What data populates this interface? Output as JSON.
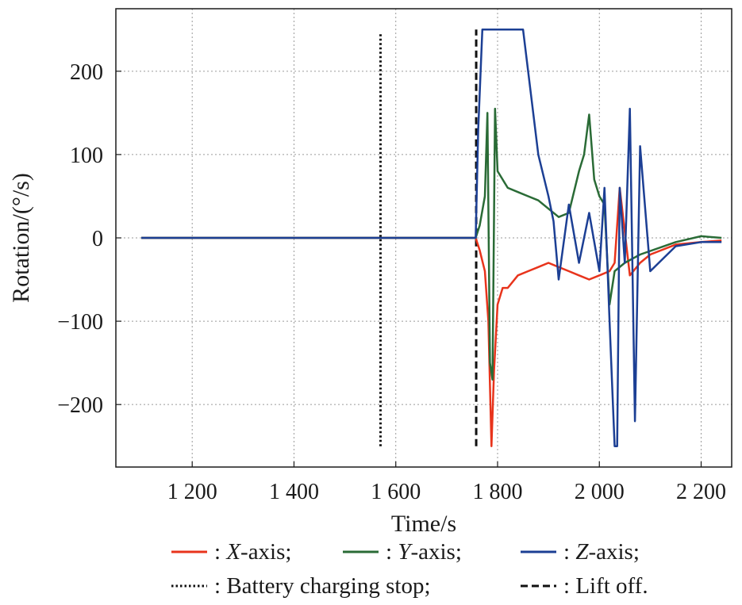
{
  "chart_data": {
    "type": "line",
    "xlabel": "Time/s",
    "ylabel": "Rotation/(°/s)",
    "xlim": [
      1050,
      2260
    ],
    "ylim": [
      -275,
      275
    ],
    "xticks": [
      1200,
      1400,
      1600,
      1800,
      2000,
      2200
    ],
    "xtick_labels": [
      "1 200",
      "1 400",
      "1 600",
      "1 800",
      "2 000",
      "2 200"
    ],
    "yticks": [
      200,
      100,
      0,
      -100,
      -200
    ],
    "ytick_labels": [
      "200",
      "100",
      "0",
      "−100",
      "−200"
    ],
    "grid": true,
    "legend_position": "bottom",
    "series": [
      {
        "name": "X-axis",
        "label_prefix": ": ",
        "label_suffix": ";",
        "color": "#e8341c",
        "x": [
          1100,
          1600,
          1757,
          1765,
          1775,
          1782,
          1788,
          1793,
          1800,
          1810,
          1820,
          1840,
          1860,
          1880,
          1900,
          1920,
          1940,
          1960,
          1980,
          2000,
          2020,
          2030,
          2040,
          2060,
          2080,
          2100,
          2150,
          2200,
          2240
        ],
        "y": [
          0,
          0,
          0,
          -15,
          -40,
          -100,
          -250,
          -160,
          -80,
          -60,
          -60,
          -45,
          -40,
          -35,
          -30,
          -35,
          -40,
          -45,
          -50,
          -45,
          -40,
          -30,
          60,
          -45,
          -30,
          -20,
          -8,
          -5,
          -3
        ]
      },
      {
        "name": "Y-axis",
        "label_prefix": ": ",
        "label_suffix": ";",
        "color": "#2a6b36",
        "x": [
          1100,
          1600,
          1757,
          1765,
          1775,
          1780,
          1785,
          1790,
          1795,
          1800,
          1810,
          1820,
          1840,
          1860,
          1880,
          1900,
          1920,
          1940,
          1960,
          1970,
          1980,
          1990,
          2000,
          2010,
          2020,
          2030,
          2050,
          2080,
          2150,
          2200,
          2240
        ],
        "y": [
          0,
          0,
          0,
          15,
          50,
          150,
          -150,
          -170,
          155,
          80,
          70,
          60,
          55,
          50,
          45,
          35,
          25,
          30,
          80,
          100,
          148,
          70,
          50,
          40,
          -80,
          -40,
          -30,
          -20,
          -5,
          2,
          0
        ]
      },
      {
        "name": "Z-axis",
        "label_prefix": ": ",
        "label_suffix": ";",
        "color": "#1c3f94",
        "x": [
          1100,
          1600,
          1757,
          1762,
          1770,
          1850,
          1880,
          1900,
          1910,
          1920,
          1940,
          1960,
          1980,
          2000,
          2010,
          2020,
          2030,
          2035,
          2040,
          2050,
          2060,
          2070,
          2080,
          2100,
          2150,
          2200,
          2240
        ],
        "y": [
          0,
          0,
          0,
          130,
          250,
          250,
          100,
          50,
          20,
          -50,
          40,
          -30,
          30,
          -40,
          60,
          -100,
          -250,
          -250,
          60,
          -30,
          155,
          -220,
          110,
          -40,
          -10,
          -5,
          -5
        ]
      }
    ],
    "markers": [
      {
        "name": "Battery charging stop",
        "label_prefix": ": ",
        "label_suffix": ";",
        "x": 1570,
        "y_range": [
          -250,
          245
        ],
        "style": "dotted",
        "color": "#111111"
      },
      {
        "name": "Lift off",
        "label_prefix": ": ",
        "label_suffix": ".",
        "x": 1758,
        "y_range": [
          -250,
          250
        ],
        "style": "dashed",
        "color": "#111111"
      }
    ]
  }
}
